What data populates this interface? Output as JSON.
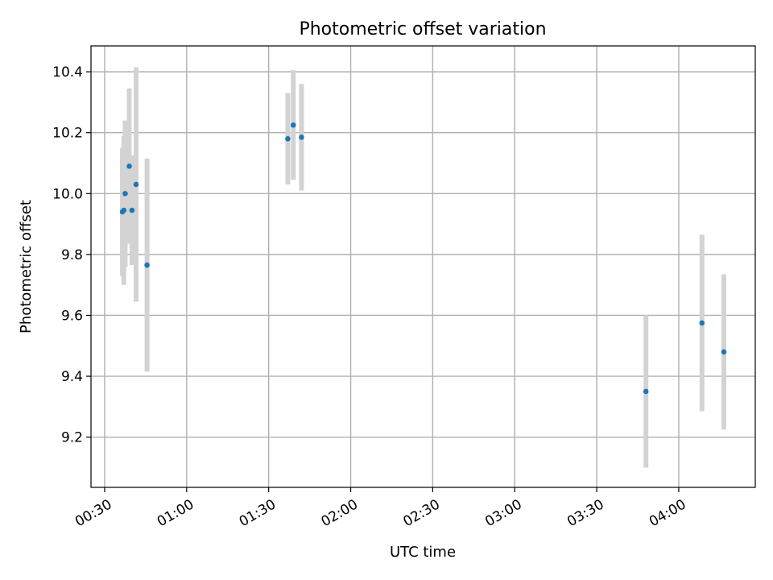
{
  "chart_data": {
    "type": "scatter",
    "title": "Photometric offset variation",
    "xlabel": "UTC time",
    "ylabel": "Photometric offset",
    "x_axis": "time",
    "x_ticks": [
      "00:30",
      "01:00",
      "01:30",
      "02:00",
      "02:30",
      "03:00",
      "03:30",
      "04:00"
    ],
    "xlim": [
      "00:25",
      "04:28"
    ],
    "y_ticks": [
      "9.2",
      "9.4",
      "9.6",
      "9.8",
      "10.0",
      "10.2",
      "10.4"
    ],
    "ylim": [
      9.035,
      10.485
    ],
    "grid": true,
    "marker_color": "#1f77b4",
    "errorbar_color": "#d3d3d3",
    "points": [
      {
        "x": "00:36:30",
        "y": 9.94,
        "err": 0.21
      },
      {
        "x": "00:37:00",
        "y": 9.945,
        "err": 0.245
      },
      {
        "x": "00:37:30",
        "y": 10.0,
        "err": 0.24
      },
      {
        "x": "00:39:00",
        "y": 10.09,
        "err": 0.255
      },
      {
        "x": "00:40:00",
        "y": 9.945,
        "err": 0.18
      },
      {
        "x": "00:41:30",
        "y": 10.03,
        "err": 0.385
      },
      {
        "x": "00:45:30",
        "y": 9.765,
        "err": 0.35
      },
      {
        "x": "01:37:00",
        "y": 10.18,
        "err": 0.15
      },
      {
        "x": "01:39:00",
        "y": 10.225,
        "err": 0.18
      },
      {
        "x": "01:42:00",
        "y": 10.185,
        "err": 0.175
      },
      {
        "x": "03:48:00",
        "y": 9.35,
        "err": 0.25
      },
      {
        "x": "04:08:30",
        "y": 9.575,
        "err": 0.29
      },
      {
        "x": "04:16:30",
        "y": 9.48,
        "err": 0.255
      }
    ]
  }
}
